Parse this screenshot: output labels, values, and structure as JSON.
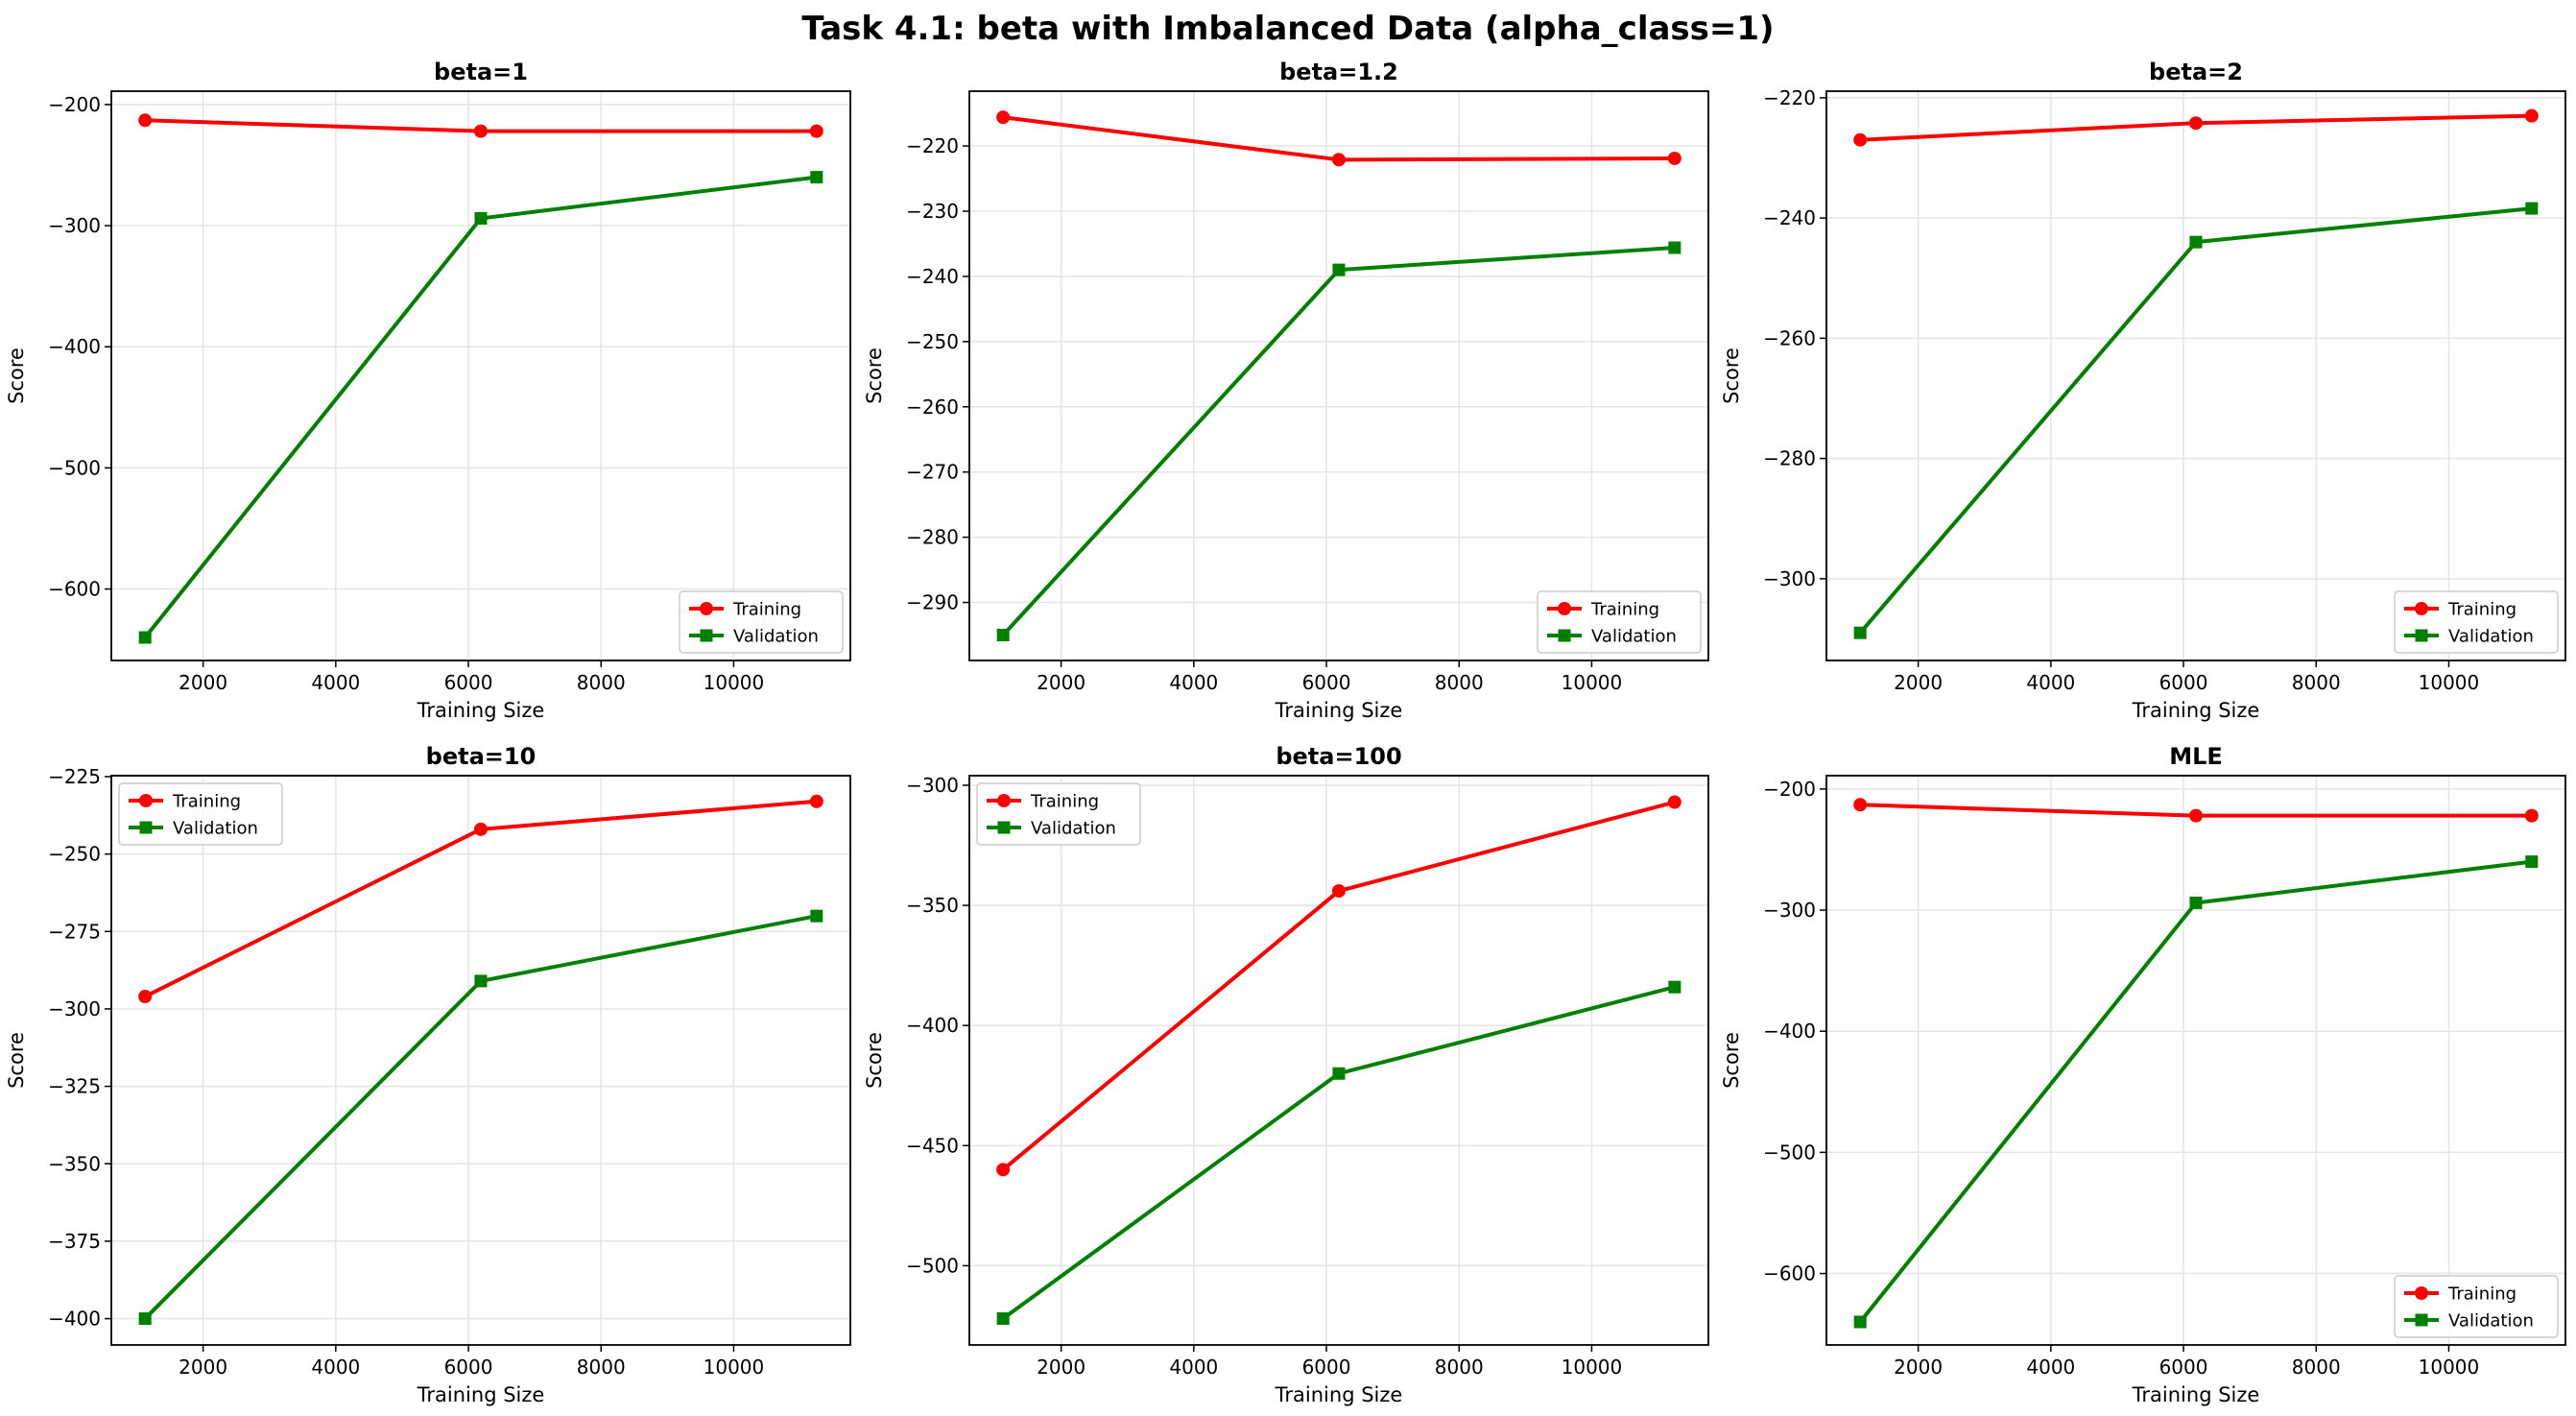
{
  "figure_title": "Task 4.1: beta with Imbalanced Data (alpha_class=1)",
  "colors": {
    "training": "#ff0000",
    "validation": "#008000",
    "grid": "#e5e5e5"
  },
  "chart_data": [
    {
      "type": "line",
      "title": "beta=1",
      "xlabel": "Training Size",
      "ylabel": "Score",
      "x": [
        1125,
        6187,
        11250
      ],
      "xlim": [
        616,
        11759
      ],
      "ylim": [
        -659,
        -189
      ],
      "xticks": [
        2000,
        4000,
        6000,
        8000,
        10000
      ],
      "yticks": [
        -600,
        -500,
        -400,
        -300,
        -200
      ],
      "grid": true,
      "legend_position": "lower right",
      "series": [
        {
          "name": "Training",
          "values": [
            -213,
            -222,
            -222
          ],
          "color": "#ff0000",
          "marker": "circle"
        },
        {
          "name": "Validation",
          "values": [
            -640,
            -294,
            -260
          ],
          "color": "#008000",
          "marker": "square"
        }
      ]
    },
    {
      "type": "line",
      "title": "beta=1.2",
      "xlabel": "Training Size",
      "ylabel": "Score",
      "x": [
        1125,
        6187,
        11250
      ],
      "xlim": [
        616,
        11759
      ],
      "ylim": [
        -298.9,
        -211.6
      ],
      "xticks": [
        2000,
        4000,
        6000,
        8000,
        10000
      ],
      "yticks": [
        -290,
        -280,
        -270,
        -260,
        -250,
        -240,
        -230,
        -220
      ],
      "grid": true,
      "legend_position": "lower right",
      "series": [
        {
          "name": "Training",
          "values": [
            -215.6,
            -222.1,
            -221.9
          ],
          "color": "#ff0000",
          "marker": "circle"
        },
        {
          "name": "Validation",
          "values": [
            -295,
            -239,
            -235.6
          ],
          "color": "#008000",
          "marker": "square"
        }
      ]
    },
    {
      "type": "line",
      "title": "beta=2",
      "xlabel": "Training Size",
      "ylabel": "Score",
      "x": [
        1125,
        6187,
        11250
      ],
      "xlim": [
        616,
        11759
      ],
      "ylim": [
        -313.6,
        -218.9
      ],
      "xticks": [
        2000,
        4000,
        6000,
        8000,
        10000
      ],
      "yticks": [
        -300,
        -280,
        -260,
        -240,
        -220
      ],
      "grid": true,
      "legend_position": "lower right",
      "series": [
        {
          "name": "Training",
          "values": [
            -227,
            -224.2,
            -223
          ],
          "color": "#ff0000",
          "marker": "circle"
        },
        {
          "name": "Validation",
          "values": [
            -309,
            -244,
            -238.4
          ],
          "color": "#008000",
          "marker": "square"
        }
      ]
    },
    {
      "type": "line",
      "title": "beta=10",
      "xlabel": "Training Size",
      "ylabel": "Score",
      "x": [
        1125,
        6187,
        11250
      ],
      "xlim": [
        616,
        11759
      ],
      "ylim": [
        -408.5,
        -224.7
      ],
      "xticks": [
        2000,
        4000,
        6000,
        8000,
        10000
      ],
      "yticks": [
        -400,
        -375,
        -350,
        -325,
        -300,
        -275,
        -250,
        -225
      ],
      "grid": true,
      "legend_position": "upper left",
      "series": [
        {
          "name": "Training",
          "values": [
            -296,
            -242,
            -233
          ],
          "color": "#ff0000",
          "marker": "circle"
        },
        {
          "name": "Validation",
          "values": [
            -400,
            -291,
            -270
          ],
          "color": "#008000",
          "marker": "square"
        }
      ]
    },
    {
      "type": "line",
      "title": "beta=100",
      "xlabel": "Training Size",
      "ylabel": "Score",
      "x": [
        1125,
        6187,
        11250
      ],
      "xlim": [
        616,
        11759
      ],
      "ylim": [
        -533,
        -296
      ],
      "xticks": [
        2000,
        4000,
        6000,
        8000,
        10000
      ],
      "yticks": [
        -500,
        -450,
        -400,
        -350,
        -300
      ],
      "grid": true,
      "legend_position": "upper left",
      "series": [
        {
          "name": "Training",
          "values": [
            -460,
            -344,
            -307
          ],
          "color": "#ff0000",
          "marker": "circle"
        },
        {
          "name": "Validation",
          "values": [
            -522,
            -420,
            -384
          ],
          "color": "#008000",
          "marker": "square"
        }
      ]
    },
    {
      "type": "line",
      "title": "MLE",
      "xlabel": "Training Size",
      "ylabel": "Score",
      "x": [
        1125,
        6187,
        11250
      ],
      "xlim": [
        616,
        11759
      ],
      "ylim": [
        -659,
        -189
      ],
      "xticks": [
        2000,
        4000,
        6000,
        8000,
        10000
      ],
      "yticks": [
        -600,
        -500,
        -400,
        -300,
        -200
      ],
      "grid": true,
      "legend_position": "lower right",
      "series": [
        {
          "name": "Training",
          "values": [
            -213,
            -222,
            -222
          ],
          "color": "#ff0000",
          "marker": "circle"
        },
        {
          "name": "Validation",
          "values": [
            -640,
            -294,
            -260
          ],
          "color": "#008000",
          "marker": "square"
        }
      ]
    }
  ]
}
